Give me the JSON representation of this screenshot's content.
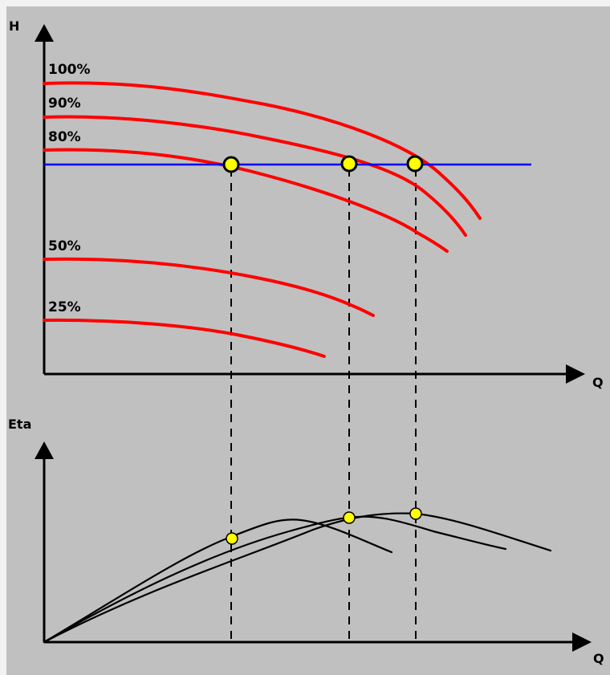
{
  "diagram": {
    "colors": {
      "background": "#c0c0c0",
      "page": "#f2f2f2",
      "pump_curve": "#ff0000",
      "system_line": "#0000ff",
      "marker_fill": "#ffff00",
      "axis": "#000000"
    },
    "head_chart": {
      "y_axis_label": "H",
      "x_axis_label": "Q",
      "curve_labels": [
        "100%",
        "90%",
        "80%",
        "50%",
        "25%"
      ]
    },
    "efficiency_chart": {
      "y_axis_label": "Eta",
      "x_axis_label": "Q"
    },
    "icons": {
      "axis_arrow": "filled-triangle-arrow",
      "operating_point": "yellow-circle-marker"
    }
  }
}
